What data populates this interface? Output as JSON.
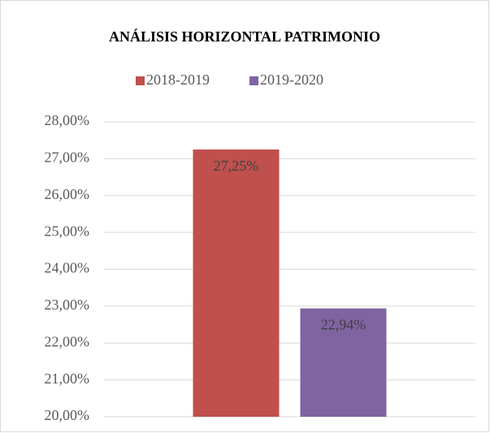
{
  "chart_data": {
    "type": "bar",
    "title": "ANÁLISIS HORIZONTAL PATRIMONIO",
    "categories": [
      null
    ],
    "series": [
      {
        "name": "2018-2019",
        "color": "#c0504d",
        "values": [
          27.25
        ],
        "value_labels": [
          "27,25%"
        ]
      },
      {
        "name": "2019-2020",
        "color": "#8064a2",
        "values": [
          22.94
        ],
        "value_labels": [
          "22,94%"
        ]
      }
    ],
    "ylim": [
      20,
      28
    ],
    "yticks": [
      {
        "value": 20,
        "label": "20,00%"
      },
      {
        "value": 21,
        "label": "21,00%"
      },
      {
        "value": 22,
        "label": "22,00%"
      },
      {
        "value": 23,
        "label": "23,00%"
      },
      {
        "value": 24,
        "label": "24,00%"
      },
      {
        "value": 25,
        "label": "25,00%"
      },
      {
        "value": 26,
        "label": "26,00%"
      },
      {
        "value": 27,
        "label": "27,00%"
      },
      {
        "value": 28,
        "label": "28,00%"
      }
    ],
    "grid": true,
    "legend": "top"
  }
}
